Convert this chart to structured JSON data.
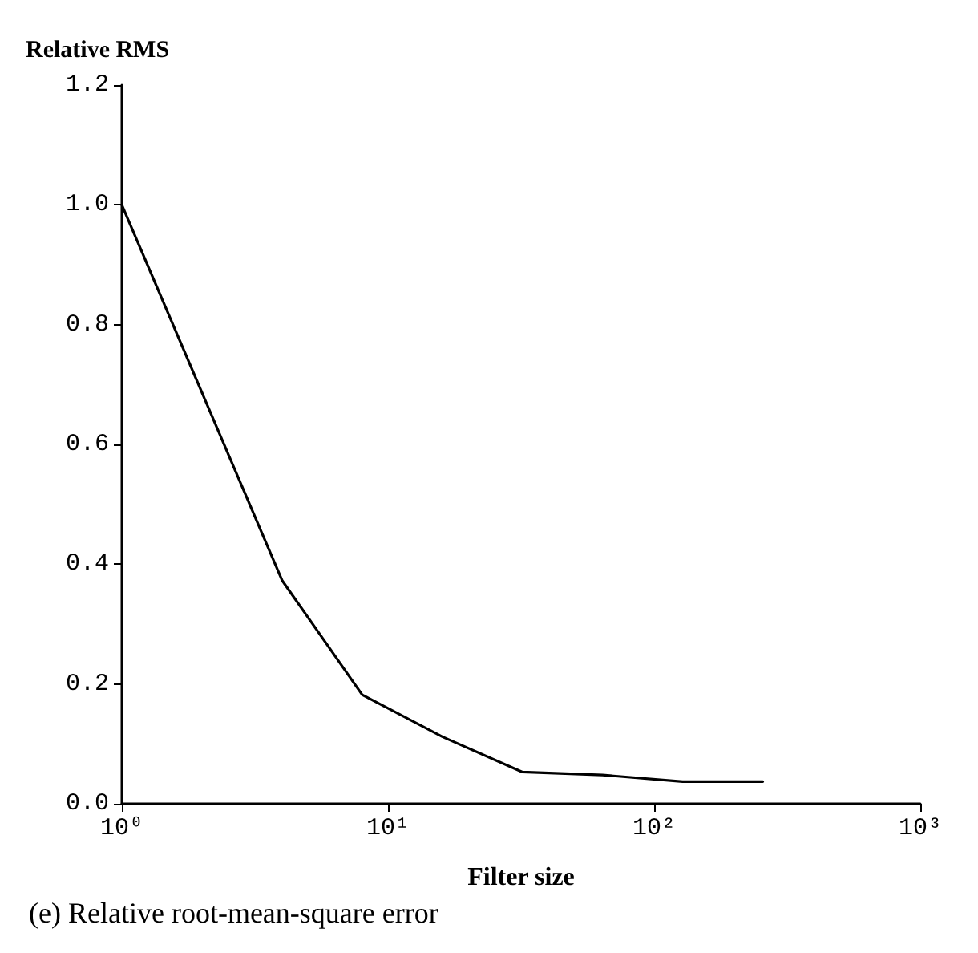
{
  "chart_data": {
    "type": "line",
    "ylabel": "Relative RMS",
    "xlabel": "Filter size",
    "annotations": [
      "(e) Relative root-mean-square error"
    ],
    "log": "x",
    "x": [
      1,
      4,
      8,
      16,
      32,
      64,
      128,
      256
    ],
    "series": [
      {
        "color": "#000000",
        "values": [
          1.0,
          0.373,
          0.182,
          0.112,
          0.053,
          0.048,
          0.037,
          0.037
        ]
      }
    ],
    "xlim": [
      1,
      1000
    ],
    "xticks": [
      {
        "value": 1,
        "label": "10⁰"
      },
      {
        "value": 10,
        "label": "10¹"
      },
      {
        "value": 100,
        "label": "10²"
      },
      {
        "value": 1000,
        "label": "10³"
      }
    ],
    "ylim": [
      0,
      1.2
    ],
    "yticks": [
      {
        "value": 0,
        "label": "0.0"
      },
      {
        "value": 0.2,
        "label": "0.2"
      },
      {
        "value": 0.4,
        "label": "0.4"
      },
      {
        "value": 0.6,
        "label": "0.6"
      },
      {
        "value": 0.8,
        "label": "0.8"
      },
      {
        "value": 1,
        "label": "1.0"
      },
      {
        "value": 1.2,
        "label": "1.2"
      }
    ],
    "grid": false,
    "marker": "none",
    "line_style": "solid"
  }
}
